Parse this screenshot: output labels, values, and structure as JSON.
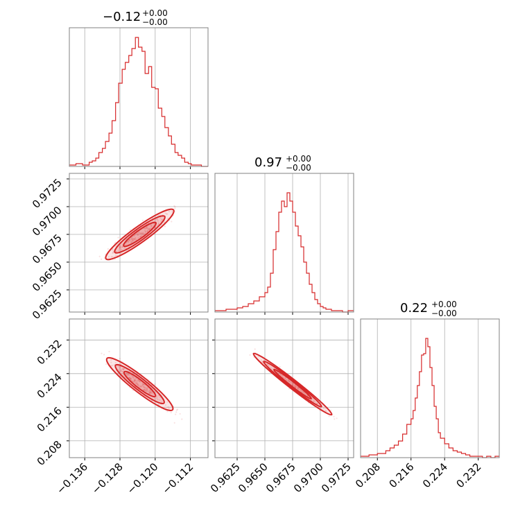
{
  "figure": {
    "accent_color": "#d62728",
    "grid": true
  },
  "chart_data": [
    {
      "type": "histogram",
      "panel": "diag-1",
      "title": {
        "main": "−0.12",
        "upper": "+0.00",
        "lower": "−0.00"
      },
      "bins": [
        -0.1395,
        -0.138,
        -0.1365,
        -0.135,
        -0.1343,
        -0.1335,
        -0.1328,
        -0.132,
        -0.1313,
        -0.1305,
        -0.1298,
        -0.129,
        -0.1283,
        -0.1275,
        -0.1268,
        -0.126,
        -0.1253,
        -0.1245,
        -0.1238,
        -0.123,
        -0.1223,
        -0.1215,
        -0.1208,
        -0.12,
        -0.1193,
        -0.1185,
        -0.1178,
        -0.117,
        -0.1163,
        -0.1155,
        -0.1148,
        -0.114,
        -0.1133,
        -0.1125,
        -0.1118,
        -0.111,
        -0.1095,
        -0.108
      ],
      "values": [
        1,
        2,
        1,
        3,
        4,
        6,
        10,
        13,
        18,
        24,
        33,
        46,
        60,
        70,
        75,
        80,
        85,
        93,
        86,
        83,
        67,
        72,
        57,
        56,
        42,
        36,
        28,
        22,
        16,
        10,
        8,
        6,
        3,
        2,
        1,
        1,
        0,
        1
      ],
      "ylim": [
        0,
        100
      ],
      "xlim": [
        -0.1395,
        -0.108
      ],
      "xticks": [
        -0.136,
        -0.128,
        -0.12,
        -0.112
      ]
    },
    {
      "type": "histogram",
      "panel": "diag-2",
      "title": {
        "main": "0.97",
        "upper": "+0.00",
        "lower": "−0.00"
      },
      "bins": [
        0.9605,
        0.9615,
        0.9625,
        0.963,
        0.9635,
        0.964,
        0.9645,
        0.965,
        0.96525,
        0.9655,
        0.96575,
        0.966,
        0.96625,
        0.9665,
        0.96675,
        0.967,
        0.96725,
        0.9675,
        0.96775,
        0.968,
        0.96825,
        0.9685,
        0.96875,
        0.969,
        0.96925,
        0.9695,
        0.96975,
        0.97,
        0.97025,
        0.9705,
        0.971,
        0.9715,
        0.972,
        0.9725,
        0.973
      ],
      "values": [
        1,
        2,
        3,
        4,
        6,
        8,
        11,
        14,
        18,
        28,
        45,
        58,
        72,
        80,
        76,
        86,
        80,
        72,
        62,
        55,
        47,
        36,
        28,
        20,
        14,
        9,
        6,
        4,
        3,
        2,
        1,
        1,
        0,
        1
      ],
      "ylim": [
        0,
        100
      ],
      "xlim": [
        0.9605,
        0.973
      ],
      "xticks": [
        0.9625,
        0.965,
        0.9675,
        0.97,
        0.9725
      ]
    },
    {
      "type": "histogram",
      "panel": "diag-3",
      "title": {
        "main": "0.22",
        "upper": "+0.00",
        "lower": "−0.00"
      },
      "bins": [
        0.204,
        0.206,
        0.208,
        0.21,
        0.211,
        0.212,
        0.213,
        0.214,
        0.215,
        0.216,
        0.2165,
        0.217,
        0.2175,
        0.218,
        0.2185,
        0.219,
        0.2195,
        0.22,
        0.2205,
        0.221,
        0.2215,
        0.222,
        0.2225,
        0.223,
        0.224,
        0.225,
        0.226,
        0.227,
        0.228,
        0.229,
        0.23,
        0.231,
        0.232,
        0.233,
        0.234,
        0.235,
        0.236,
        0.237
      ],
      "values": [
        1,
        2,
        3,
        5,
        7,
        9,
        12,
        17,
        24,
        28,
        34,
        43,
        52,
        62,
        74,
        75,
        86,
        80,
        65,
        52,
        37,
        28,
        18,
        14,
        10,
        7,
        5,
        4,
        3,
        2,
        1,
        1,
        1,
        0,
        1,
        0,
        1
      ],
      "ylim": [
        0,
        100
      ],
      "xlim": [
        0.204,
        0.237
      ],
      "xticks": [
        0.208,
        0.216,
        0.224,
        0.232
      ]
    },
    {
      "type": "scatter",
      "panel": "pair-2-1",
      "description_kind": "2d-density",
      "x_range": [
        -0.1395,
        -0.108
      ],
      "y_range": [
        0.9605,
        0.973
      ],
      "slope": 0.318,
      "center": [
        -0.1235,
        0.9675
      ],
      "yticks": [
        0.9625,
        0.965,
        0.9675,
        0.97,
        0.9725
      ]
    },
    {
      "type": "scatter",
      "panel": "pair-3-1",
      "description_kind": "2d-density",
      "x_range": [
        -0.1395,
        -0.108
      ],
      "y_range": [
        0.204,
        0.237
      ],
      "slope": -0.72,
      "center": [
        -0.1235,
        0.2215
      ],
      "yticks": [
        0.208,
        0.216,
        0.224,
        0.232
      ]
    },
    {
      "type": "scatter",
      "panel": "pair-3-2",
      "description_kind": "2d-density",
      "x_range": [
        0.9605,
        0.973
      ],
      "y_range": [
        0.204,
        0.237
      ],
      "slope": -2.3,
      "center": [
        0.9675,
        0.2215
      ],
      "yticks": [
        0.208,
        0.216,
        0.224,
        0.232
      ]
    }
  ],
  "labels": {
    "x1": [
      "−0.136",
      "−0.128",
      "−0.120",
      "−0.112"
    ],
    "x2": [
      "0.9625",
      "0.9650",
      "0.9675",
      "0.9700",
      "0.9725"
    ],
    "x3": [
      "0.208",
      "0.216",
      "0.224",
      "0.232"
    ],
    "y2": [
      "0.9625",
      "0.9650",
      "0.9675",
      "0.9700",
      "0.9725"
    ],
    "y3": [
      "0.208",
      "0.216",
      "0.224",
      "0.232"
    ]
  }
}
